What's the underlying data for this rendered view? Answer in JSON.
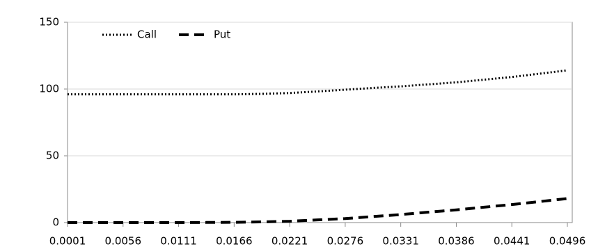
{
  "chart_data": {
    "type": "line",
    "x": [
      0.0001,
      0.00285,
      0.0056,
      0.00835,
      0.0111,
      0.01385,
      0.0166,
      0.01935,
      0.0221,
      0.02485,
      0.0276,
      0.03035,
      0.0331,
      0.03585,
      0.0386,
      0.04135,
      0.0441,
      0.04685,
      0.0496
    ],
    "series": [
      {
        "name": "Call",
        "color": "#000000",
        "dash": "dotted",
        "values": [
          96,
          96,
          96,
          96,
          96,
          96,
          96,
          96.4,
          97,
          98.2,
          99.5,
          100.8,
          102,
          103.5,
          105,
          107,
          109,
          111.5,
          114
        ]
      },
      {
        "name": "Put",
        "color": "#000000",
        "dash": "dashed",
        "values": [
          0,
          0,
          0,
          0,
          0,
          0.1,
          0.2,
          0.5,
          1,
          2,
          3,
          4.5,
          6,
          7.8,
          9.5,
          11.5,
          13.5,
          15.7,
          18
        ]
      }
    ],
    "xlim": [
      0.0001,
      0.0496
    ],
    "xticks": [
      0.0001,
      0.0056,
      0.0111,
      0.0166,
      0.0221,
      0.0276,
      0.0331,
      0.0386,
      0.0441,
      0.0496
    ],
    "ylim": [
      0,
      150
    ],
    "yticks": [
      0,
      50,
      100,
      150
    ],
    "grid": true,
    "legend": "top-left"
  }
}
